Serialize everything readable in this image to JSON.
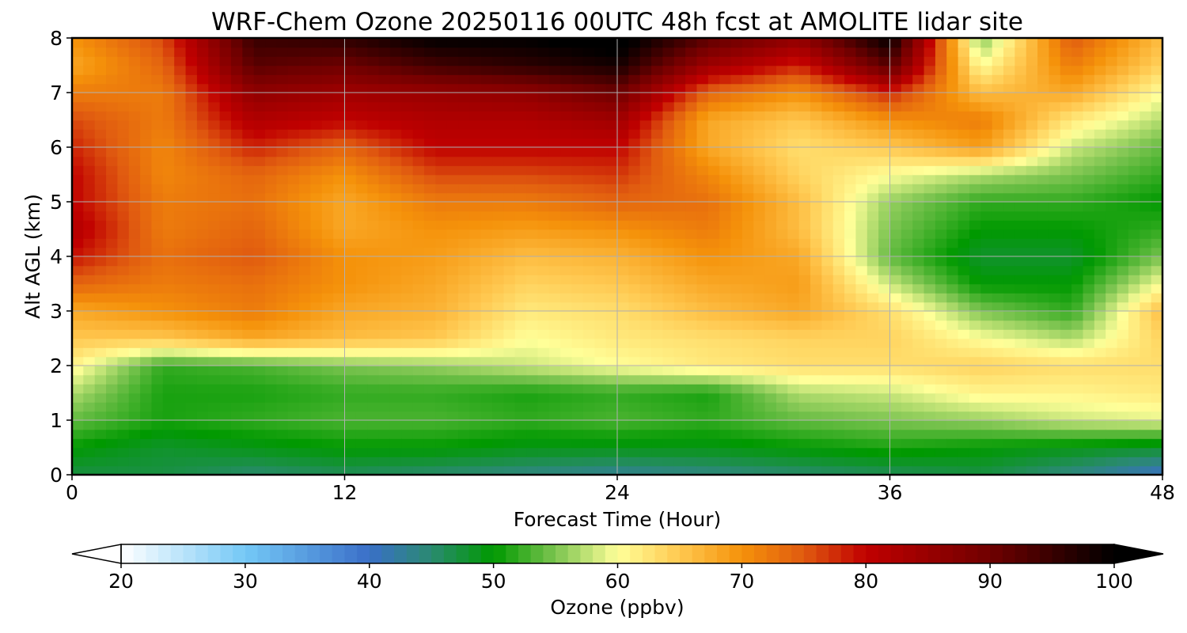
{
  "chart_data": {
    "type": "heatmap",
    "title": "WRF-Chem Ozone  20250116 00UTC 48h fcst at AMOLITE lidar site",
    "xlabel": "Forecast Time (Hour)",
    "ylabel": "Alt AGL (km)",
    "xlim": [
      0,
      48
    ],
    "ylim": [
      0,
      8
    ],
    "xticks": [
      "0",
      "12",
      "24",
      "36",
      "48"
    ],
    "yticks": [
      "0",
      "1",
      "2",
      "3",
      "4",
      "5",
      "6",
      "7",
      "8"
    ],
    "grid": true,
    "x": [
      0,
      4,
      8,
      12,
      16,
      20,
      24,
      28,
      32,
      36,
      40,
      44,
      48
    ],
    "y": [
      0,
      0.5,
      1,
      1.5,
      2,
      2.5,
      3,
      3.5,
      4,
      4.5,
      5,
      5.5,
      6,
      6.5,
      7,
      7.5,
      8
    ],
    "z": [
      [
        47,
        47,
        45,
        46,
        45,
        44,
        43,
        44,
        45,
        46,
        47,
        44,
        40
      ],
      [
        50,
        48,
        49,
        50,
        50,
        49,
        49,
        49,
        50,
        51,
        50,
        49,
        48
      ],
      [
        54,
        51,
        52,
        53,
        53,
        52,
        53,
        52,
        54,
        55,
        56,
        58,
        59
      ],
      [
        57,
        51,
        51,
        52,
        52,
        51,
        52,
        51,
        57,
        58,
        61,
        61,
        62
      ],
      [
        61,
        52,
        53,
        55,
        56,
        58,
        60,
        62,
        63,
        63,
        64,
        63,
        63
      ],
      [
        65,
        65,
        68,
        66,
        65,
        60,
        62,
        63,
        64,
        64,
        60,
        57,
        64
      ],
      [
        68,
        70,
        72,
        68,
        67,
        62,
        63,
        66,
        68,
        63,
        55,
        52,
        66
      ],
      [
        74,
        72,
        73,
        70,
        68,
        64,
        65,
        68,
        69,
        58,
        50,
        50,
        60
      ],
      [
        79,
        73,
        75,
        70,
        69,
        66,
        67,
        70,
        68,
        54,
        48,
        48,
        55
      ],
      [
        82,
        72,
        74,
        68,
        70,
        69,
        70,
        72,
        66,
        55,
        50,
        50,
        52
      ],
      [
        80,
        72,
        73,
        68,
        72,
        72,
        74,
        73,
        66,
        56,
        52,
        52,
        50
      ],
      [
        80,
        71,
        74,
        70,
        76,
        76,
        77,
        71,
        64,
        60,
        57,
        55,
        52
      ],
      [
        78,
        71,
        78,
        74,
        80,
        80,
        80,
        68,
        63,
        65,
        69,
        58,
        54
      ],
      [
        76,
        72,
        82,
        80,
        82,
        82,
        84,
        68,
        65,
        70,
        72,
        62,
        57
      ],
      [
        72,
        72,
        86,
        84,
        85,
        86,
        90,
        74,
        70,
        78,
        66,
        68,
        60
      ],
      [
        68,
        74,
        92,
        90,
        94,
        96,
        98,
        84,
        78,
        92,
        60,
        72,
        64
      ],
      [
        70,
        76,
        95,
        96,
        100,
        100,
        102,
        92,
        86,
        100,
        55,
        75,
        66
      ]
    ],
    "colorbar": {
      "label": "Ozone  (ppbv)",
      "min": 20,
      "max": 100,
      "ticks": [
        "20",
        "30",
        "40",
        "50",
        "60",
        "70",
        "80",
        "90",
        "100"
      ],
      "extend": "both"
    },
    "colormap": [
      [
        20,
        "#ffffff"
      ],
      [
        30,
        "#74c8f6"
      ],
      [
        40,
        "#3a6fc8"
      ],
      [
        45,
        "#2a8a70"
      ],
      [
        50,
        "#009900"
      ],
      [
        55,
        "#7cc450"
      ],
      [
        60,
        "#ffff99"
      ],
      [
        65,
        "#ffc850"
      ],
      [
        70,
        "#f5920a"
      ],
      [
        75,
        "#e05a10"
      ],
      [
        80,
        "#c00000"
      ],
      [
        90,
        "#700000"
      ],
      [
        100,
        "#000000"
      ]
    ]
  }
}
